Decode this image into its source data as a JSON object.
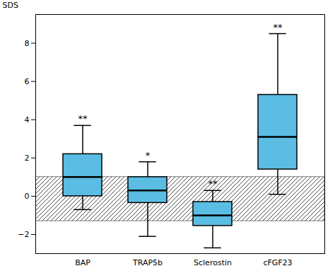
{
  "chart_data": {
    "type": "box",
    "categories": [
      "BAP",
      "TRAP5b",
      "Sclerostin",
      "cFGF23"
    ],
    "whislo": [
      -0.7,
      -2.1,
      -2.7,
      0.1
    ],
    "q1": [
      0.0,
      -0.35,
      -1.55,
      1.4
    ],
    "median": [
      1.0,
      0.3,
      -1.0,
      3.1
    ],
    "q3": [
      2.2,
      1.0,
      -0.3,
      5.3
    ],
    "whishi": [
      3.7,
      1.8,
      0.3,
      8.5
    ],
    "annotations": [
      {
        "category": "BAP",
        "text": "**"
      },
      {
        "category": "TRAP5b",
        "text": "*"
      },
      {
        "category": "Sclerostin",
        "text": "**"
      },
      {
        "category": "cFGF23",
        "text": "**"
      }
    ],
    "band": [
      -1.3,
      1.0
    ],
    "ylabel": "SDS",
    "ylim": [
      -3.0,
      9.5
    ],
    "yticks": [
      -2,
      0,
      2,
      4,
      6,
      8
    ],
    "color": "#5bbde4"
  }
}
